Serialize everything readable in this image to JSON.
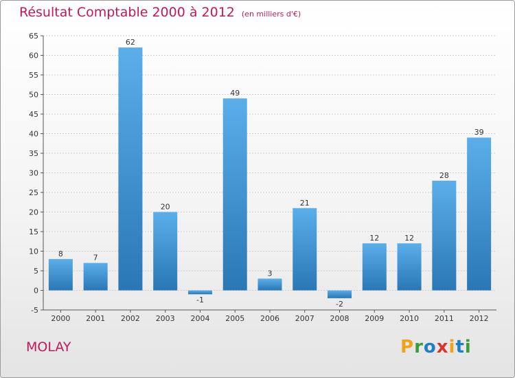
{
  "header": {
    "title": "Résultat Comptable 2000 à 2012",
    "unit": "(en milliers d'€)"
  },
  "footer": {
    "commune": "MOLAY",
    "logo": "Proxiti"
  },
  "colors": {
    "title": "#c2185b",
    "bar_light": "#5aaeea",
    "bar_dark": "#2a77b5"
  },
  "chart_data": {
    "type": "bar",
    "title": "Résultat Comptable 2000 à 2012",
    "subtitle": "(en milliers d'€)",
    "xlabel": "",
    "ylabel": "",
    "categories": [
      "2000",
      "2001",
      "2002",
      "2003",
      "2004",
      "2005",
      "2006",
      "2007",
      "2008",
      "2009",
      "2010",
      "2011",
      "2012"
    ],
    "values": [
      8,
      7,
      62,
      20,
      -1,
      49,
      3,
      21,
      -2,
      12,
      12,
      28,
      39
    ],
    "ylim": [
      -5,
      65
    ],
    "yticks": [
      -5,
      0,
      5,
      10,
      15,
      20,
      25,
      30,
      35,
      40,
      45,
      50,
      55,
      60,
      65
    ],
    "grid": true
  }
}
